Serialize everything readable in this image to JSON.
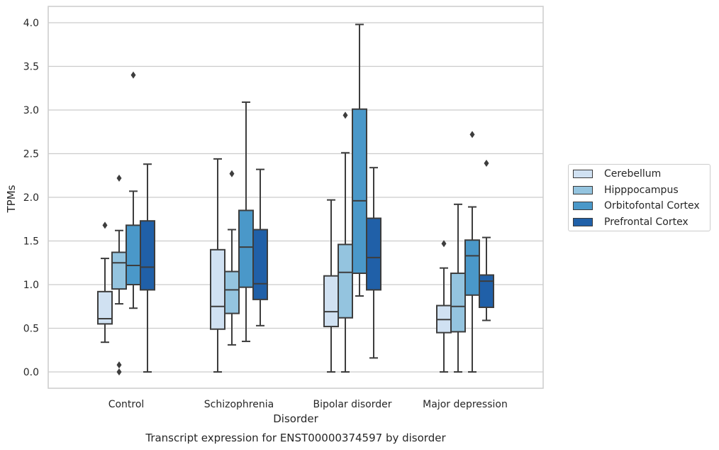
{
  "chart_data": {
    "type": "box",
    "xlabel": "Disorder",
    "ylabel": "TPMs",
    "caption": "Transcript expression for ENST00000374597 by disorder",
    "ylim": [
      -0.2,
      4.2
    ],
    "yticks": [
      "0.0",
      "0.5",
      "1.0",
      "1.5",
      "2.0",
      "2.5",
      "3.0",
      "3.5",
      "4.0"
    ],
    "grid": "horizontal",
    "legend_position": "right",
    "categories": [
      "Control",
      "Schizophrenia",
      "Bipolar disorder",
      "Major depression"
    ],
    "series": [
      {
        "name": "Cerebellum",
        "color": "#d0e1f2",
        "boxes": [
          {
            "min": 0.34,
            "q1": 0.55,
            "median": 0.61,
            "q3": 0.92,
            "max": 1.3,
            "outliers": [
              1.68
            ]
          },
          {
            "min": 0.0,
            "q1": 0.49,
            "median": 0.75,
            "q3": 1.4,
            "max": 2.44,
            "outliers": []
          },
          {
            "min": 0.0,
            "q1": 0.52,
            "median": 0.69,
            "q3": 1.1,
            "max": 1.97,
            "outliers": []
          },
          {
            "min": 0.0,
            "q1": 0.45,
            "median": 0.6,
            "q3": 0.76,
            "max": 1.19,
            "outliers": [
              1.47
            ]
          }
        ]
      },
      {
        "name": "Hipppocampus",
        "color": "#94c4df",
        "boxes": [
          {
            "min": 0.78,
            "q1": 0.95,
            "median": 1.25,
            "q3": 1.37,
            "max": 1.62,
            "outliers": [
              2.22,
              0.08,
              0.0
            ]
          },
          {
            "min": 0.31,
            "q1": 0.67,
            "median": 0.94,
            "q3": 1.15,
            "max": 1.63,
            "outliers": [
              2.27
            ]
          },
          {
            "min": 0.0,
            "q1": 0.62,
            "median": 1.14,
            "q3": 1.46,
            "max": 2.51,
            "outliers": [
              2.94
            ]
          },
          {
            "min": 0.0,
            "q1": 0.46,
            "median": 0.75,
            "q3": 1.13,
            "max": 1.92,
            "outliers": []
          }
        ]
      },
      {
        "name": "Orbitofontal Cortex",
        "color": "#4a98c9",
        "boxes": [
          {
            "min": 0.73,
            "q1": 1.0,
            "median": 1.22,
            "q3": 1.68,
            "max": 2.07,
            "outliers": [
              3.4
            ]
          },
          {
            "min": 0.35,
            "q1": 0.97,
            "median": 1.43,
            "q3": 1.85,
            "max": 3.09,
            "outliers": []
          },
          {
            "min": 0.87,
            "q1": 1.13,
            "median": 1.96,
            "q3": 3.01,
            "max": 3.98,
            "outliers": []
          },
          {
            "min": 0.0,
            "q1": 0.88,
            "median": 1.33,
            "q3": 1.51,
            "max": 1.89,
            "outliers": [
              2.72
            ]
          }
        ]
      },
      {
        "name": "Prefrontal Cortex",
        "color": "#2060a8",
        "boxes": [
          {
            "min": 0.0,
            "q1": 0.94,
            "median": 1.2,
            "q3": 1.73,
            "max": 2.38,
            "outliers": []
          },
          {
            "min": 0.53,
            "q1": 0.83,
            "median": 1.01,
            "q3": 1.63,
            "max": 2.32,
            "outliers": []
          },
          {
            "min": 0.16,
            "q1": 0.94,
            "median": 1.31,
            "q3": 1.76,
            "max": 2.34,
            "outliers": []
          },
          {
            "min": 0.59,
            "q1": 0.74,
            "median": 1.04,
            "q3": 1.11,
            "max": 1.54,
            "outliers": [
              2.39
            ]
          }
        ]
      }
    ]
  }
}
